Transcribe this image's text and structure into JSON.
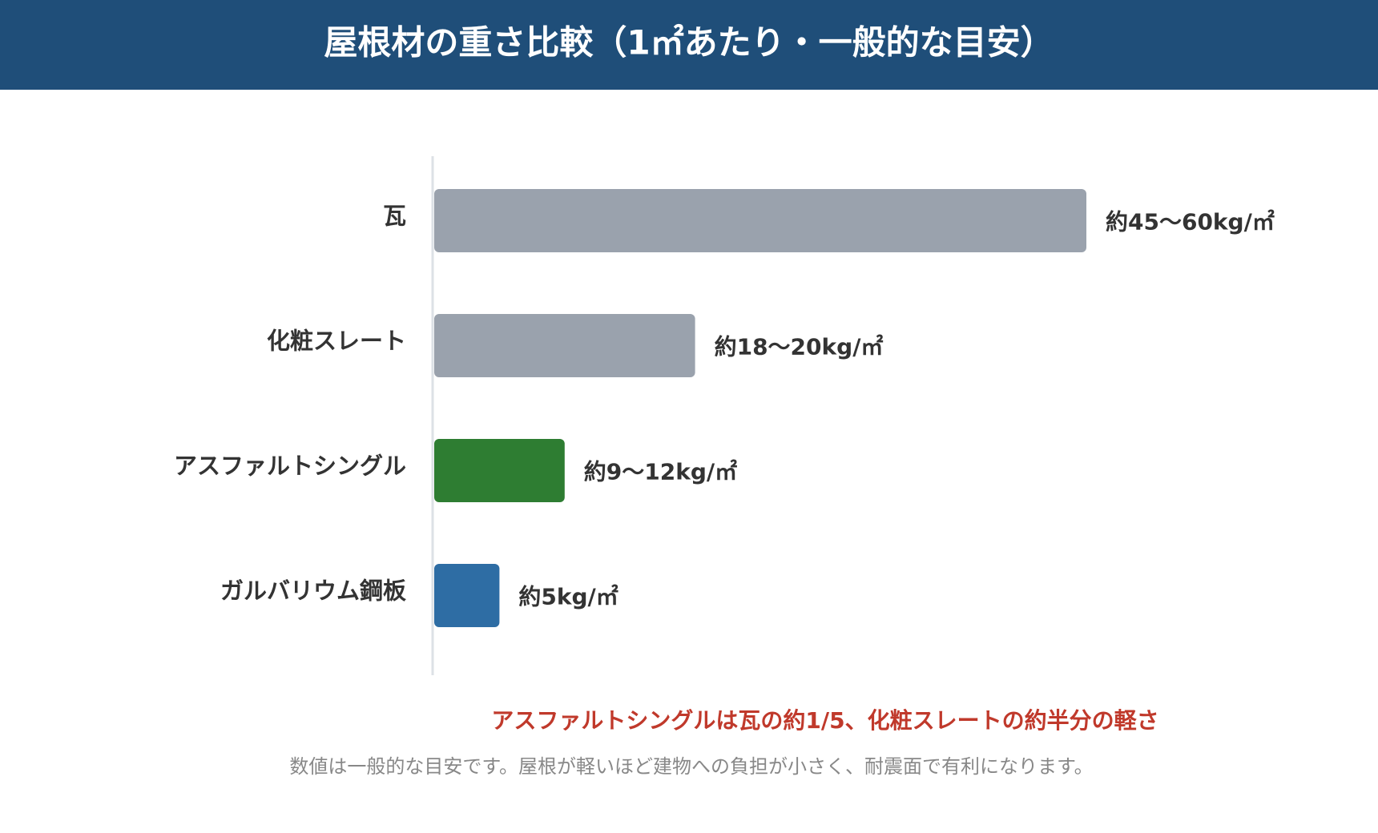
{
  "chart_data": {
    "type": "bar",
    "orientation": "horizontal",
    "title": "屋根材の重さ比較（1㎡あたり・一般的な目安）",
    "categories": [
      "瓦",
      "化粧スレート",
      "アスファルトシングル",
      "ガルバリウム鋼板"
    ],
    "values": [
      50,
      20,
      10,
      5
    ],
    "value_labels": [
      "約45〜60kg/㎡",
      "約18〜20kg/㎡",
      "約9〜12kg/㎡",
      "約5kg/㎡"
    ],
    "colors": [
      "#9aa2ad",
      "#9aa2ad",
      "#2e7d32",
      "#2e6da4"
    ],
    "annotation": "アスファルトシングルは瓦の約1/5、化粧スレートの約半分の軽さ",
    "note": "数値は一般的な目安です。屋根が軽いほど建物への負担が小さく、耐震面で有利になります。"
  }
}
